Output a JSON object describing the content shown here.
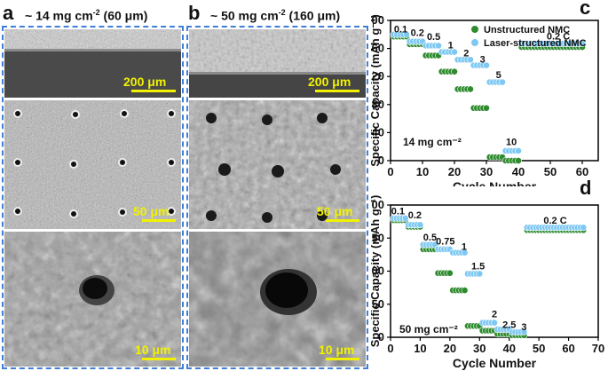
{
  "panels": {
    "a": {
      "letter": "a",
      "title_pre": "~ 14 mg cm",
      "title_sup": "-2",
      "title_post": " (60 μm)",
      "scalebars": [
        "200 μm",
        "50 μm",
        "10 μm"
      ]
    },
    "b": {
      "letter": "b",
      "title_pre": "~ 50 mg cm",
      "title_sup": "-2",
      "title_post": " (160 μm)",
      "scalebars": [
        "200 μm",
        "50 μm",
        "10 μm"
      ]
    }
  },
  "chart_data": [
    {
      "panel_letter": "c",
      "type": "scatter",
      "xlabel": "Cycle Number",
      "ylabel": "Specific Capacity (mAh g⁻¹)",
      "xlim": [
        0,
        65
      ],
      "ylim": [
        0,
        200
      ],
      "xticks": [
        0,
        10,
        20,
        30,
        40,
        50,
        60
      ],
      "yticks": [
        0,
        40,
        80,
        120,
        160,
        200
      ],
      "legend_position": "top-right",
      "annotation_loading": "14 mg cm⁻²",
      "rate_labels": [
        {
          "text": "0.1",
          "x": 3.2,
          "y": 183
        },
        {
          "text": "0.2",
          "x": 8.4,
          "y": 178
        },
        {
          "text": "0.5",
          "x": 13.5,
          "y": 172
        },
        {
          "text": "1",
          "x": 18.8,
          "y": 160
        },
        {
          "text": "2",
          "x": 23.7,
          "y": 149
        },
        {
          "text": "3",
          "x": 28.8,
          "y": 140
        },
        {
          "text": "5",
          "x": 33.8,
          "y": 118
        },
        {
          "text": "10",
          "x": 37.8,
          "y": 22
        },
        {
          "text": "0.2 C",
          "x": 52.5,
          "y": 173
        }
      ],
      "series": [
        {
          "name": "Unstructured NMC",
          "color": "#2e8b2e",
          "segments": [
            {
              "x_start": 1,
              "x_end": 5,
              "y": 177
            },
            {
              "x_start": 6,
              "x_end": 10,
              "y": 166
            },
            {
              "x_start": 11,
              "x_end": 15,
              "y": 150
            },
            {
              "x_start": 16,
              "x_end": 20,
              "y": 127
            },
            {
              "x_start": 21,
              "x_end": 25,
              "y": 102
            },
            {
              "x_start": 26,
              "x_end": 30,
              "y": 75
            },
            {
              "x_start": 31,
              "x_end": 35,
              "y": 5
            },
            {
              "x_start": 36,
              "x_end": 40,
              "y": 0
            },
            {
              "x_start": 41,
              "x_end": 60,
              "y": 162
            }
          ]
        },
        {
          "name": "Laser-structured NMC",
          "color": "#7ec8f2",
          "segments": [
            {
              "x_start": 1,
              "x_end": 5,
              "y": 180
            },
            {
              "x_start": 6,
              "x_end": 10,
              "y": 170
            },
            {
              "x_start": 11,
              "x_end": 15,
              "y": 164
            },
            {
              "x_start": 16,
              "x_end": 20,
              "y": 155
            },
            {
              "x_start": 21,
              "x_end": 25,
              "y": 144
            },
            {
              "x_start": 26,
              "x_end": 30,
              "y": 136
            },
            {
              "x_start": 31,
              "x_end": 35,
              "y": 112
            },
            {
              "x_start": 36,
              "x_end": 40,
              "y": 14
            },
            {
              "x_start": 41,
              "x_end": 60,
              "y": 167
            }
          ]
        }
      ]
    },
    {
      "panel_letter": "d",
      "type": "scatter",
      "xlabel": "Cycle Number",
      "ylabel": "Specific Capacity (mAh g⁻¹)",
      "xlim": [
        0,
        70
      ],
      "ylim": [
        0,
        200
      ],
      "xticks": [
        0,
        10,
        20,
        30,
        40,
        50,
        60,
        70
      ],
      "yticks": [
        0,
        50,
        100,
        150,
        200
      ],
      "annotation_loading": "50 mg cm⁻²",
      "rate_labels": [
        {
          "text": "0.1",
          "x": 2.5,
          "y": 186
        },
        {
          "text": "0.2",
          "x": 8.2,
          "y": 180
        },
        {
          "text": "0.5",
          "x": 13.3,
          "y": 146
        },
        {
          "text": "0.75",
          "x": 18.5,
          "y": 140
        },
        {
          "text": "1",
          "x": 24.8,
          "y": 132
        },
        {
          "text": "1.5",
          "x": 29.5,
          "y": 103
        },
        {
          "text": "2",
          "x": 35,
          "y": 30
        },
        {
          "text": "2.5",
          "x": 40,
          "y": 14
        },
        {
          "text": "3",
          "x": 45,
          "y": 11
        },
        {
          "text": "0.2 C",
          "x": 55.5,
          "y": 172
        }
      ],
      "series": [
        {
          "name": "Unstructured NMC",
          "color": "#2e8b2e",
          "segments": [
            {
              "x_start": 1,
              "x_end": 5,
              "y": 177
            },
            {
              "x_start": 6,
              "x_end": 10,
              "y": 167
            },
            {
              "x_start": 11,
              "x_end": 15,
              "y": 133
            },
            {
              "x_start": 16,
              "x_end": 20,
              "y": 97
            },
            {
              "x_start": 21,
              "x_end": 25,
              "y": 71
            },
            {
              "x_start": 26,
              "x_end": 30,
              "y": 17
            },
            {
              "x_start": 31,
              "x_end": 35,
              "y": 10
            },
            {
              "x_start": 36,
              "x_end": 40,
              "y": 5
            },
            {
              "x_start": 41,
              "x_end": 45,
              "y": 3
            },
            {
              "x_start": 46,
              "x_end": 65,
              "y": 162
            }
          ]
        },
        {
          "name": "Laser-structured NMC",
          "color": "#7ec8f2",
          "segments": [
            {
              "x_start": 1,
              "x_end": 5,
              "y": 180
            },
            {
              "x_start": 6,
              "x_end": 10,
              "y": 170
            },
            {
              "x_start": 11,
              "x_end": 15,
              "y": 140
            },
            {
              "x_start": 16,
              "x_end": 20,
              "y": 133
            },
            {
              "x_start": 21,
              "x_end": 25,
              "y": 128
            },
            {
              "x_start": 26,
              "x_end": 30,
              "y": 96
            },
            {
              "x_start": 31,
              "x_end": 35,
              "y": 22
            },
            {
              "x_start": 36,
              "x_end": 40,
              "y": 12
            },
            {
              "x_start": 41,
              "x_end": 45,
              "y": 8
            },
            {
              "x_start": 46,
              "x_end": 65,
              "y": 166
            }
          ]
        }
      ]
    }
  ]
}
